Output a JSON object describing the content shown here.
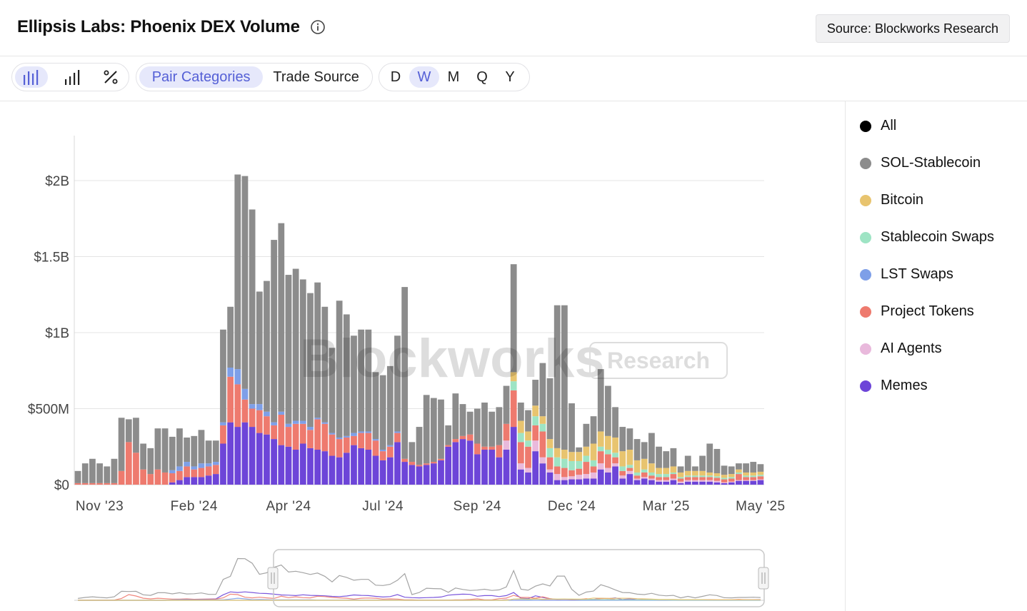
{
  "header": {
    "title": "Ellipsis Labs: Phoenix DEX Volume",
    "source_label": "Source: Blockworks Research"
  },
  "toolbar": {
    "chart_types": [
      {
        "icon": "bar-chart-icon",
        "active": true
      },
      {
        "icon": "stacked-bar-icon",
        "active": false
      },
      {
        "icon": "percent-icon",
        "active": false
      }
    ],
    "views": [
      {
        "label": "Pair Categories",
        "active": true
      },
      {
        "label": "Trade Source",
        "active": false
      }
    ],
    "intervals": [
      {
        "label": "D",
        "active": false
      },
      {
        "label": "W",
        "active": true
      },
      {
        "label": "M",
        "active": false
      },
      {
        "label": "Q",
        "active": false
      },
      {
        "label": "Y",
        "active": false
      }
    ]
  },
  "watermark": {
    "main": "Blockworks",
    "tag": "Research"
  },
  "legend": {
    "items": [
      {
        "label": "All",
        "color": "#000000"
      },
      {
        "label": "SOL-Stablecoin",
        "color": "#8c8c8c"
      },
      {
        "label": "Bitcoin",
        "color": "#e8c46f"
      },
      {
        "label": "Stablecoin Swaps",
        "color": "#9ee4c4"
      },
      {
        "label": "LST Swaps",
        "color": "#7e9fe8"
      },
      {
        "label": "Project Tokens",
        "color": "#ee7a6e"
      },
      {
        "label": "AI Agents",
        "color": "#e9b9dc"
      },
      {
        "label": "Memes",
        "color": "#6d45d8"
      }
    ]
  },
  "chart_data": {
    "type": "bar",
    "stacked": true,
    "interval": "weekly",
    "ylim": [
      0,
      2300
    ],
    "yticks": [
      {
        "value": 0,
        "label": "$0"
      },
      {
        "value": 500,
        "label": "$500M"
      },
      {
        "value": 1000,
        "label": "$1B"
      },
      {
        "value": 1500,
        "label": "$1.5B"
      },
      {
        "value": 2000,
        "label": "$2B"
      }
    ],
    "xticks": [
      {
        "index": 3,
        "label": "Nov '23"
      },
      {
        "index": 16,
        "label": "Feb '24"
      },
      {
        "index": 29,
        "label": "Apr '24"
      },
      {
        "index": 42,
        "label": "Jul '24"
      },
      {
        "index": 55,
        "label": "Sep '24"
      },
      {
        "index": 68,
        "label": "Dec '24"
      },
      {
        "index": 81,
        "label": "Mar '25"
      },
      {
        "index": 94,
        "label": "May '25"
      }
    ],
    "series": [
      {
        "name": "Memes",
        "color": "#6d45d8",
        "values": [
          0,
          0,
          0,
          0,
          0,
          0,
          0,
          0,
          0,
          0,
          0,
          0,
          0,
          15,
          30,
          50,
          50,
          50,
          60,
          70,
          270,
          410,
          380,
          410,
          380,
          340,
          330,
          300,
          260,
          250,
          230,
          270,
          240,
          230,
          220,
          190,
          180,
          210,
          260,
          240,
          230,
          190,
          160,
          180,
          280,
          150,
          130,
          120,
          130,
          140,
          160,
          250,
          280,
          300,
          290,
          200,
          230,
          230,
          180,
          230,
          380,
          100,
          80,
          220,
          140,
          80,
          30,
          30,
          35,
          35,
          40,
          40,
          100,
          80,
          120,
          40,
          70,
          30,
          40,
          30,
          20,
          20,
          30,
          10,
          20,
          20,
          20,
          20,
          15,
          10,
          15,
          25,
          25,
          25,
          30
        ]
      },
      {
        "name": "AI Agents",
        "color": "#e9b9dc",
        "values": [
          0,
          0,
          0,
          0,
          0,
          0,
          0,
          0,
          0,
          0,
          0,
          0,
          0,
          0,
          0,
          0,
          0,
          0,
          0,
          0,
          0,
          0,
          0,
          0,
          0,
          0,
          0,
          0,
          0,
          0,
          0,
          0,
          0,
          0,
          0,
          0,
          0,
          0,
          0,
          0,
          0,
          0,
          0,
          0,
          0,
          0,
          0,
          0,
          0,
          0,
          0,
          0,
          0,
          0,
          0,
          0,
          0,
          0,
          0,
          60,
          0,
          40,
          30,
          70,
          40,
          20,
          40,
          20,
          20,
          30,
          30,
          40,
          40,
          30,
          20,
          20,
          20,
          10,
          10,
          10,
          10,
          10,
          10,
          10,
          10,
          10,
          10,
          10,
          10,
          5,
          5,
          5,
          5,
          5,
          5
        ]
      },
      {
        "name": "Project Tokens",
        "color": "#ee7a6e",
        "values": [
          10,
          10,
          10,
          10,
          10,
          10,
          90,
          280,
          210,
          100,
          70,
          100,
          80,
          60,
          60,
          70,
          50,
          60,
          60,
          60,
          120,
          300,
          280,
          150,
          120,
          150,
          120,
          90,
          200,
          130,
          170,
          130,
          120,
          200,
          180,
          140,
          120,
          100,
          60,
          100,
          110,
          100,
          60,
          70,
          60,
          20,
          20,
          10,
          10,
          10,
          10,
          10,
          20,
          20,
          40,
          70,
          20,
          20,
          80,
          110,
          240,
          140,
          140,
          100,
          170,
          80,
          50,
          60,
          40,
          40,
          80,
          40,
          80,
          90,
          40,
          30,
          20,
          20,
          30,
          20,
          20,
          20,
          30,
          20,
          20,
          20,
          20,
          20,
          20,
          20,
          20,
          40,
          20,
          20,
          20
        ]
      },
      {
        "name": "LST Swaps",
        "color": "#7e9fe8",
        "values": [
          0,
          0,
          0,
          0,
          0,
          0,
          0,
          0,
          0,
          0,
          0,
          0,
          0,
          20,
          30,
          30,
          20,
          30,
          20,
          20,
          20,
          60,
          100,
          70,
          30,
          40,
          30,
          20,
          20,
          20,
          20,
          20,
          20,
          10,
          10,
          10,
          10,
          10,
          20,
          10,
          10,
          10,
          10,
          10,
          10,
          0,
          0,
          0,
          0,
          0,
          0,
          0,
          0,
          0,
          0,
          0,
          0,
          0,
          0,
          0,
          0,
          0,
          0,
          0,
          0,
          0,
          0,
          0,
          0,
          0,
          0,
          0,
          0,
          0,
          0,
          0,
          0,
          0,
          0,
          0,
          0,
          0,
          0,
          0,
          0,
          0,
          0,
          0,
          0,
          0,
          0,
          0,
          0,
          0,
          0
        ]
      },
      {
        "name": "Stablecoin Swaps",
        "color": "#9ee4c4",
        "values": [
          0,
          0,
          0,
          0,
          0,
          0,
          0,
          0,
          0,
          0,
          0,
          0,
          0,
          0,
          0,
          0,
          0,
          0,
          0,
          0,
          0,
          0,
          0,
          0,
          0,
          0,
          0,
          0,
          0,
          0,
          0,
          0,
          0,
          0,
          0,
          0,
          0,
          0,
          0,
          0,
          0,
          0,
          0,
          0,
          0,
          0,
          0,
          0,
          0,
          0,
          0,
          0,
          0,
          0,
          0,
          0,
          0,
          0,
          0,
          0,
          60,
          60,
          40,
          60,
          50,
          60,
          60,
          60,
          60,
          50,
          40,
          40,
          30,
          30,
          30,
          30,
          20,
          20,
          20,
          20,
          20,
          20,
          10,
          10,
          10,
          10,
          10,
          10,
          10,
          10,
          10,
          10,
          10,
          10,
          10
        ]
      },
      {
        "name": "Bitcoin",
        "color": "#e8c46f",
        "values": [
          0,
          0,
          0,
          0,
          0,
          0,
          0,
          0,
          0,
          0,
          0,
          0,
          0,
          0,
          0,
          0,
          0,
          0,
          0,
          0,
          0,
          0,
          0,
          0,
          0,
          0,
          0,
          0,
          0,
          0,
          0,
          0,
          0,
          0,
          0,
          0,
          0,
          0,
          0,
          0,
          0,
          0,
          0,
          0,
          0,
          0,
          0,
          0,
          0,
          0,
          0,
          0,
          0,
          0,
          0,
          0,
          0,
          0,
          0,
          0,
          60,
          80,
          60,
          70,
          50,
          60,
          60,
          60,
          60,
          60,
          60,
          110,
          100,
          90,
          100,
          100,
          100,
          80,
          70,
          60,
          40,
          40,
          40,
          30,
          30,
          30,
          30,
          20,
          20,
          20,
          20,
          20,
          20,
          20,
          20
        ]
      },
      {
        "name": "SOL-Stablecoin",
        "color": "#8c8c8c",
        "values": [
          80,
          130,
          160,
          130,
          110,
          160,
          350,
          150,
          230,
          170,
          170,
          270,
          290,
          220,
          250,
          160,
          200,
          220,
          150,
          140,
          610,
          400,
          1280,
          1400,
          1280,
          740,
          860,
          1200,
          1240,
          980,
          1000,
          930,
          880,
          890,
          760,
          560,
          900,
          800,
          640,
          670,
          670,
          440,
          490,
          520,
          630,
          1130,
          130,
          250,
          450,
          420,
          390,
          130,
          300,
          210,
          150,
          230,
          290,
          230,
          250,
          250,
          710,
          120,
          140,
          170,
          350,
          400,
          940,
          950,
          320,
          30,
          150,
          180,
          410,
          330,
          200,
          160,
          140,
          140,
          110,
          200,
          140,
          110,
          120,
          40,
          100,
          30,
          100,
          190,
          160,
          60,
          50,
          40,
          60,
          70,
          50
        ]
      }
    ]
  },
  "navigator": {
    "overview": true
  }
}
